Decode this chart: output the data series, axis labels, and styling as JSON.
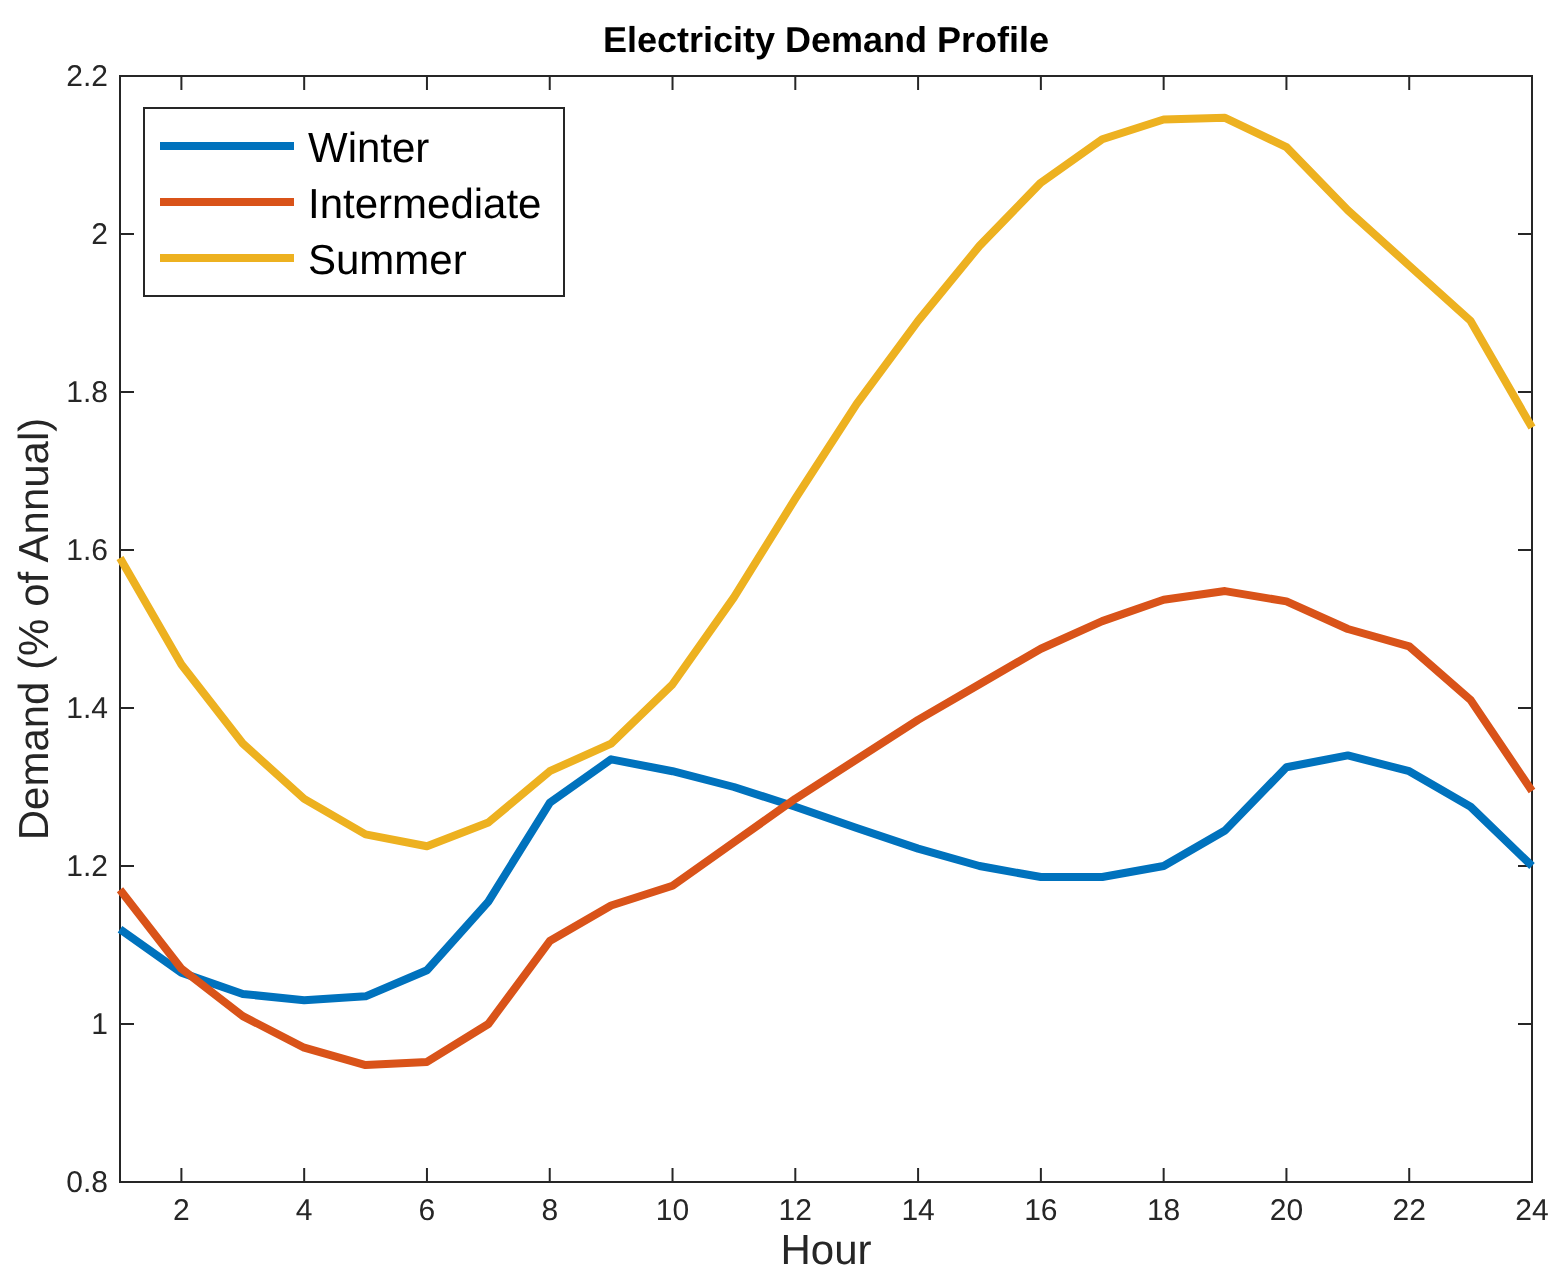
{
  "chart_data": {
    "type": "line",
    "title": "Electricity Demand Profile",
    "xlabel": "Hour",
    "ylabel": "Demand (% of Annual)",
    "x": [
      1,
      2,
      3,
      4,
      5,
      6,
      7,
      8,
      9,
      10,
      11,
      12,
      13,
      14,
      15,
      16,
      17,
      18,
      19,
      20,
      21,
      22,
      23,
      24
    ],
    "xlim": [
      1,
      24
    ],
    "xticks": [
      2,
      4,
      6,
      8,
      10,
      12,
      14,
      16,
      18,
      20,
      22,
      24
    ],
    "ylim": [
      0.8,
      2.2
    ],
    "yticks": [
      0.8,
      1,
      1.2,
      1.4,
      1.6,
      1.8,
      2,
      2.2
    ],
    "grid": false,
    "legend": "top left",
    "marker": "none",
    "line_style": "solid",
    "series": [
      {
        "name": "Winter",
        "color": "#0072bd",
        "values": [
          1.12,
          1.065,
          1.038,
          1.03,
          1.035,
          1.068,
          1.155,
          1.28,
          1.335,
          1.32,
          1.3,
          1.275,
          1.248,
          1.222,
          1.2,
          1.186,
          1.186,
          1.2,
          1.245,
          1.325,
          1.34,
          1.32,
          1.275,
          1.2
        ]
      },
      {
        "name": "Intermediate",
        "color": "#d95319",
        "values": [
          1.17,
          1.07,
          1.01,
          0.97,
          0.948,
          0.952,
          1.0,
          1.105,
          1.15,
          1.175,
          1.23,
          1.285,
          1.335,
          1.385,
          1.43,
          1.475,
          1.51,
          1.537,
          1.548,
          1.535,
          1.5,
          1.478,
          1.41,
          1.295
        ]
      },
      {
        "name": "Summer",
        "color": "#edb120",
        "values": [
          1.59,
          1.455,
          1.355,
          1.285,
          1.24,
          1.225,
          1.255,
          1.32,
          1.355,
          1.43,
          1.54,
          1.665,
          1.785,
          1.89,
          1.985,
          2.065,
          2.12,
          2.145,
          2.147,
          2.11,
          2.03,
          1.96,
          1.89,
          1.755
        ]
      }
    ]
  }
}
